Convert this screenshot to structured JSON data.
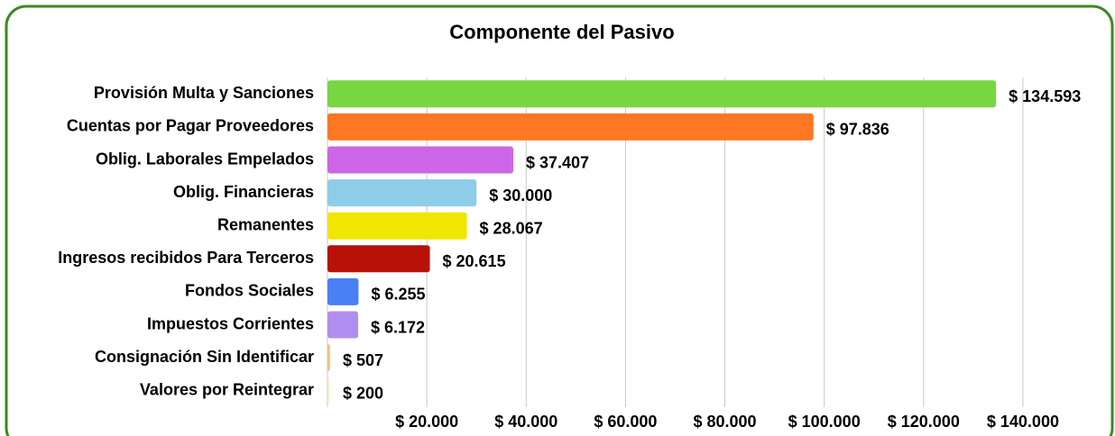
{
  "chart_data": {
    "type": "bar",
    "orientation": "horizontal",
    "title": "Componente del Pasivo",
    "categories": [
      "Provisión Multa y Sanciones",
      "Cuentas por Pagar Proveedores",
      "Oblig. Laborales Empelados",
      "Oblig. Financieras",
      "Remanentes",
      "Ingresos recibidos Para Terceros",
      "Fondos Sociales",
      "Impuestos Corrientes",
      "Consignación Sin Identificar",
      "Valores por Reintegrar"
    ],
    "values": [
      134593,
      97836,
      37407,
      30000,
      28067,
      20615,
      6255,
      6172,
      507,
      200
    ],
    "value_labels": [
      "$ 134.593",
      "$ 97.836",
      "$ 37.407",
      "$ 30.000",
      "$ 28.067",
      "$ 20.615",
      "$ 6.255",
      "$ 6.172",
      "$ 507",
      "$ 200"
    ],
    "colors": [
      "#77d642",
      "#ff7722",
      "#cc66e6",
      "#8dcde8",
      "#f0e600",
      "#b81208",
      "#4a7ff5",
      "#b08ef0",
      "#f5c07a",
      "#f5e6a0"
    ],
    "xlim": [
      0,
      150000
    ],
    "xticks": [
      {
        "value": 20000,
        "label": "$ 20.000"
      },
      {
        "value": 40000,
        "label": "$ 40.000"
      },
      {
        "value": 60000,
        "label": "$ 60.000"
      },
      {
        "value": 80000,
        "label": "$ 80.000"
      },
      {
        "value": 100000,
        "label": "$ 100.000"
      },
      {
        "value": 120000,
        "label": "$ 120.000"
      },
      {
        "value": 140000,
        "label": "$ 140.000"
      }
    ],
    "grid": true
  }
}
